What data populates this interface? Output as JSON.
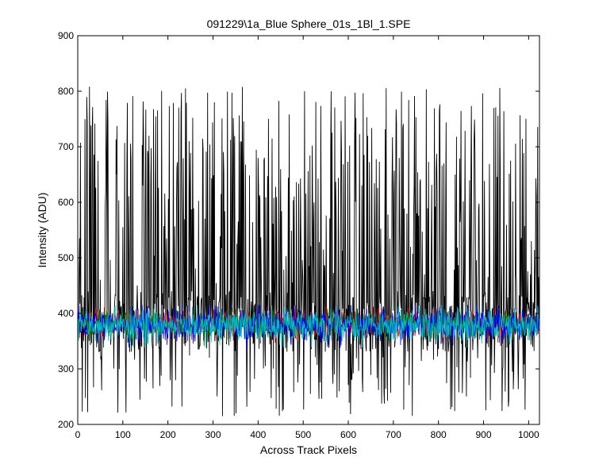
{
  "chart_data": {
    "type": "line",
    "title": "091229\\1a_Blue Sphere_01s_1Bl_1.SPE",
    "xlabel": "Across Track Pixels",
    "ylabel": "Intensity (ADU)",
    "xlim": [
      0,
      1024
    ],
    "ylim": [
      200,
      900
    ],
    "xticks": [
      0,
      100,
      200,
      300,
      400,
      500,
      600,
      700,
      800,
      900,
      1000
    ],
    "yticks": [
      200,
      300,
      400,
      500,
      600,
      700,
      800,
      900
    ],
    "grid": false,
    "n_points": 1024,
    "series": [
      {
        "color": "#000000",
        "baseline": 380,
        "pattern": "high-variance noise, peaks 650-810, dips 215-300"
      },
      {
        "color": "#ff0000",
        "baseline": 382,
        "pattern": "noise band 355-410"
      },
      {
        "color": "#008000",
        "baseline": 382,
        "pattern": "noise band 355-410"
      },
      {
        "color": "#0000ff",
        "baseline": 380,
        "pattern": "noise band 345-410"
      },
      {
        "color": "#00bfbf",
        "baseline": 378,
        "pattern": "noise band 340-405"
      }
    ]
  }
}
